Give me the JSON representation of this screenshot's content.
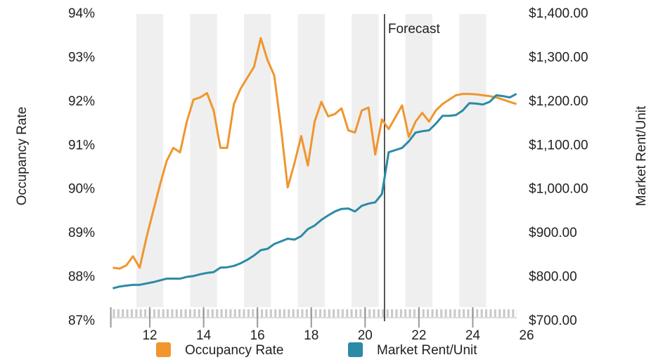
{
  "chart_data": {
    "type": "line",
    "x": [
      10.625,
      10.875,
      11.125,
      11.375,
      11.625,
      11.875,
      12.125,
      12.375,
      12.625,
      12.875,
      13.125,
      13.375,
      13.625,
      13.875,
      14.125,
      14.375,
      14.625,
      14.875,
      15.125,
      15.375,
      15.625,
      15.875,
      16.125,
      16.375,
      16.625,
      16.875,
      17.125,
      17.375,
      17.625,
      17.875,
      18.125,
      18.375,
      18.625,
      18.875,
      19.125,
      19.375,
      19.625,
      19.875,
      20.125,
      20.375,
      20.625,
      20.875,
      21.125,
      21.375,
      21.625,
      21.875,
      22.125,
      22.375,
      22.625,
      22.875,
      23.125,
      23.375,
      23.625,
      23.875,
      24.125,
      24.375,
      24.625,
      24.875,
      25.125,
      25.375,
      25.625
    ],
    "series": [
      {
        "name": "Occupancy Rate",
        "color": "#f0962d",
        "axis": "y",
        "values": [
          88.22,
          88.2,
          88.27,
          88.48,
          88.22,
          88.9,
          89.5,
          90.1,
          90.65,
          90.95,
          90.85,
          91.55,
          92.05,
          92.1,
          92.2,
          91.8,
          90.95,
          90.95,
          91.95,
          92.3,
          92.55,
          92.8,
          93.45,
          92.95,
          92.6,
          91.4,
          90.05,
          90.6,
          91.22,
          90.55,
          91.55,
          92.0,
          91.67,
          91.72,
          91.85,
          91.35,
          91.3,
          91.8,
          91.87,
          90.8,
          91.6,
          91.38,
          91.65,
          91.92,
          91.2,
          91.55,
          91.75,
          91.55,
          91.8,
          91.95,
          92.05,
          92.15,
          92.18,
          92.18,
          92.17,
          92.15,
          92.13,
          92.1,
          92.05,
          92.0,
          91.95
        ]
      },
      {
        "name": "Market Rent/Unit",
        "color": "#2b8aa6",
        "axis": "y2",
        "values": [
          775,
          779,
          781,
          783,
          783,
          786,
          789,
          793,
          797,
          797,
          797,
          801,
          803,
          807,
          810,
          812,
          822,
          823,
          826,
          832,
          840,
          850,
          862,
          865,
          876,
          882,
          888,
          886,
          894,
          910,
          918,
          931,
          941,
          950,
          956,
          957,
          950,
          963,
          968,
          971,
          990,
          1085,
          1090,
          1095,
          1110,
          1130,
          1133,
          1135,
          1150,
          1168,
          1168,
          1170,
          1180,
          1197,
          1196,
          1194,
          1200,
          1215,
          1213,
          1210,
          1218
        ]
      }
    ],
    "ylabel": "Occupancy Rate",
    "y2label": "Market Rent/Unit",
    "xlim": [
      10.5,
      26
    ],
    "xticks": [
      12,
      14,
      16,
      18,
      20,
      22,
      24,
      26
    ],
    "ylim": [
      87,
      94
    ],
    "yticks": [
      {
        "value": 87,
        "label": "87%"
      },
      {
        "value": 88,
        "label": "88%"
      },
      {
        "value": 89,
        "label": "89%"
      },
      {
        "value": 90,
        "label": "90%"
      },
      {
        "value": 91,
        "label": "91%"
      },
      {
        "value": 92,
        "label": "92%"
      },
      {
        "value": 93,
        "label": "93%"
      },
      {
        "value": 94,
        "label": "94%"
      }
    ],
    "y2lim": [
      700,
      1400
    ],
    "y2ticks": [
      {
        "value": 700,
        "label": "$700.00"
      },
      {
        "value": 800,
        "label": "$800.00"
      },
      {
        "value": 900,
        "label": "$900.00"
      },
      {
        "value": 1000,
        "label": "$1,000.00"
      },
      {
        "value": 1100,
        "label": "$1,100.00"
      },
      {
        "value": 1200,
        "label": "$1,200.00"
      },
      {
        "value": 1300,
        "label": "$1,300.00"
      },
      {
        "value": 1400,
        "label": "$1,400.00"
      }
    ],
    "annotations": [
      {
        "text": "Forecast",
        "x": 20.72
      }
    ],
    "legend": "bottom"
  }
}
